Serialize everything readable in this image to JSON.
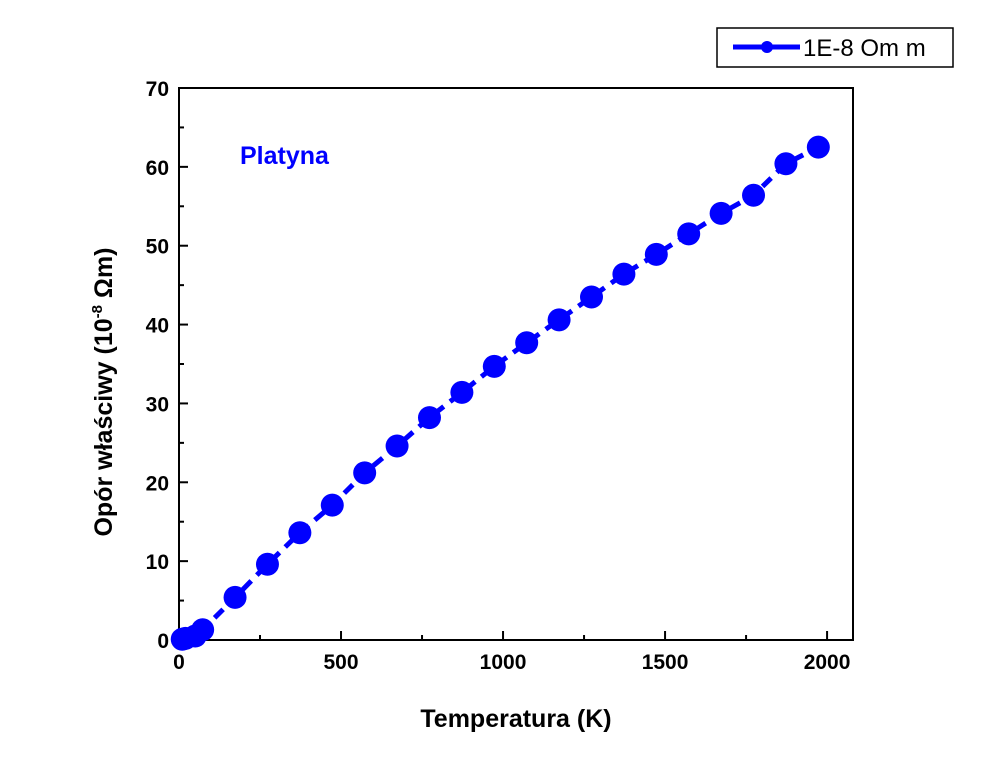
{
  "chart_data": {
    "type": "line",
    "title": "",
    "annotation": "Platyna",
    "xlabel": "Temperatura (K)",
    "ylabel_main": "Opór właściwy (10",
    "ylabel_sup": "-8",
    "ylabel_tail": " Ωm)",
    "xlim": [
      0,
      2080
    ],
    "ylim": [
      0,
      70
    ],
    "xticks": [
      0,
      500,
      1000,
      1500,
      2000
    ],
    "yticks": [
      0,
      10,
      20,
      30,
      40,
      50,
      60,
      70
    ],
    "grid": false,
    "legend_position": "top-right",
    "series": [
      {
        "name": "1E-8 Om m",
        "color": "#0000ff",
        "x": [
          10,
          20,
          50,
          73,
          173,
          273,
          373,
          473,
          573,
          673,
          773,
          873,
          973,
          1073,
          1173,
          1273,
          1373,
          1473,
          1573,
          1673,
          1773,
          1873,
          1973
        ],
        "y": [
          0.1,
          0.2,
          0.5,
          1.3,
          5.4,
          9.6,
          13.6,
          17.1,
          21.2,
          24.6,
          28.2,
          31.4,
          34.7,
          37.7,
          40.6,
          43.5,
          46.4,
          48.9,
          51.5,
          54.1,
          56.4,
          60.4,
          62.5
        ]
      }
    ]
  }
}
